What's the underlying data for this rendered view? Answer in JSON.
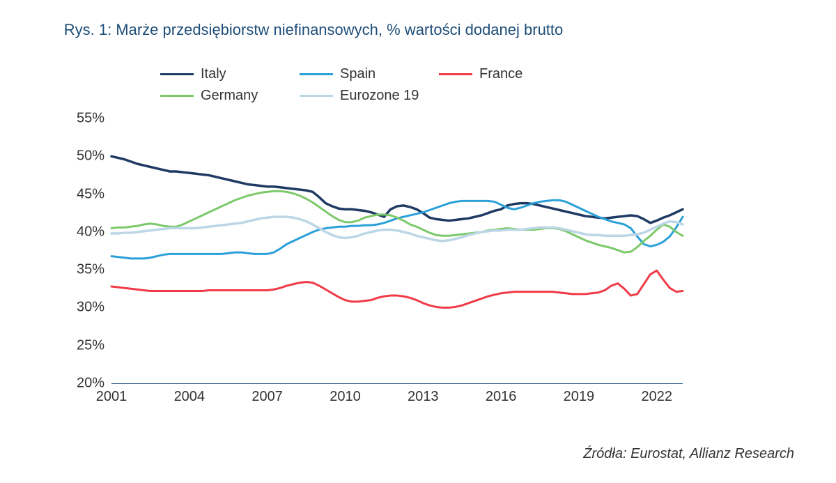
{
  "chart": {
    "type": "line",
    "title": "Rys. 1: Marże przedsiębiorstw niefinansowych, % wartości dodanej brutto",
    "title_color": "#1f4e79",
    "title_fontsize": 22,
    "label_fontsize": 20,
    "label_color": "#333333",
    "background_color": "#ffffff",
    "x": {
      "min": 2001,
      "max": 2023,
      "ticks": [
        2001,
        2004,
        2007,
        2010,
        2013,
        2016,
        2019,
        2022
      ]
    },
    "y": {
      "min": 20,
      "max": 55,
      "ticks": [
        20,
        25,
        30,
        35,
        40,
        45,
        50,
        55
      ],
      "suffix": "%"
    },
    "x_axis_line_color": "#1f4e79",
    "x_values": [
      2001.0,
      2001.25,
      2001.5,
      2001.75,
      2002.0,
      2002.25,
      2002.5,
      2002.75,
      2003.0,
      2003.25,
      2003.5,
      2003.75,
      2004.0,
      2004.25,
      2004.5,
      2004.75,
      2005.0,
      2005.25,
      2005.5,
      2005.75,
      2006.0,
      2006.25,
      2006.5,
      2006.75,
      2007.0,
      2007.25,
      2007.5,
      2007.75,
      2008.0,
      2008.25,
      2008.5,
      2008.75,
      2009.0,
      2009.25,
      2009.5,
      2009.75,
      2010.0,
      2010.25,
      2010.5,
      2010.75,
      2011.0,
      2011.25,
      2011.5,
      2011.75,
      2012.0,
      2012.25,
      2012.5,
      2012.75,
      2013.0,
      2013.25,
      2013.5,
      2013.75,
      2014.0,
      2014.25,
      2014.5,
      2014.75,
      2015.0,
      2015.25,
      2015.5,
      2015.75,
      2016.0,
      2016.25,
      2016.5,
      2016.75,
      2017.0,
      2017.25,
      2017.5,
      2017.75,
      2018.0,
      2018.25,
      2018.5,
      2018.75,
      2019.0,
      2019.25,
      2019.5,
      2019.75,
      2020.0,
      2020.25,
      2020.5,
      2020.75,
      2021.0,
      2021.25,
      2021.5,
      2021.75,
      2022.0,
      2022.25,
      2022.5,
      2022.75,
      2023.0
    ],
    "series": [
      {
        "name": "Italy",
        "label": "Italy",
        "color": "#1f3a63",
        "width": 3.5,
        "values": [
          50.0,
          49.8,
          49.6,
          49.3,
          49.0,
          48.8,
          48.6,
          48.4,
          48.2,
          48.0,
          48.0,
          47.9,
          47.8,
          47.7,
          47.6,
          47.5,
          47.3,
          47.1,
          46.9,
          46.7,
          46.5,
          46.3,
          46.2,
          46.1,
          46.0,
          46.0,
          45.9,
          45.8,
          45.7,
          45.6,
          45.5,
          45.3,
          44.6,
          43.8,
          43.4,
          43.1,
          43.0,
          43.0,
          42.9,
          42.8,
          42.6,
          42.3,
          42.0,
          43.0,
          43.4,
          43.5,
          43.3,
          43.0,
          42.5,
          41.9,
          41.7,
          41.6,
          41.5,
          41.6,
          41.7,
          41.8,
          42.0,
          42.2,
          42.5,
          42.8,
          43.0,
          43.5,
          43.7,
          43.8,
          43.8,
          43.7,
          43.5,
          43.3,
          43.1,
          42.9,
          42.7,
          42.5,
          42.3,
          42.1,
          42.0,
          41.9,
          41.8,
          41.9,
          42.0,
          42.1,
          42.2,
          42.1,
          41.7,
          41.2,
          41.5,
          41.9,
          42.2,
          42.6,
          43.0
        ]
      },
      {
        "name": "Spain",
        "label": "Spain",
        "color": "#2aa0d8",
        "width": 3,
        "values": [
          36.8,
          36.7,
          36.6,
          36.5,
          36.5,
          36.5,
          36.6,
          36.8,
          37.0,
          37.1,
          37.1,
          37.1,
          37.1,
          37.1,
          37.1,
          37.1,
          37.1,
          37.1,
          37.2,
          37.3,
          37.3,
          37.2,
          37.1,
          37.1,
          37.1,
          37.3,
          37.8,
          38.4,
          38.8,
          39.2,
          39.6,
          40.0,
          40.3,
          40.5,
          40.6,
          40.7,
          40.7,
          40.8,
          40.8,
          40.9,
          40.9,
          41.0,
          41.2,
          41.5,
          41.8,
          42.0,
          42.2,
          42.4,
          42.6,
          42.9,
          43.2,
          43.5,
          43.8,
          44.0,
          44.1,
          44.1,
          44.1,
          44.1,
          44.1,
          44.0,
          43.6,
          43.2,
          43.0,
          43.2,
          43.5,
          43.8,
          44.0,
          44.1,
          44.2,
          44.2,
          44.0,
          43.6,
          43.2,
          42.8,
          42.4,
          42.0,
          41.7,
          41.4,
          41.2,
          41.0,
          40.5,
          39.4,
          38.4,
          38.1,
          38.3,
          38.7,
          39.4,
          40.6,
          42.0
        ]
      },
      {
        "name": "France",
        "label": "France",
        "color": "#ef3b47",
        "width": 3,
        "values": [
          32.8,
          32.7,
          32.6,
          32.5,
          32.4,
          32.3,
          32.2,
          32.2,
          32.2,
          32.2,
          32.2,
          32.2,
          32.2,
          32.2,
          32.2,
          32.3,
          32.3,
          32.3,
          32.3,
          32.3,
          32.3,
          32.3,
          32.3,
          32.3,
          32.3,
          32.4,
          32.6,
          32.9,
          33.1,
          33.3,
          33.4,
          33.3,
          32.9,
          32.4,
          31.9,
          31.4,
          31.0,
          30.8,
          30.8,
          30.9,
          31.0,
          31.3,
          31.5,
          31.6,
          31.6,
          31.5,
          31.3,
          31.0,
          30.6,
          30.3,
          30.1,
          30.0,
          30.0,
          30.1,
          30.3,
          30.6,
          30.9,
          31.2,
          31.5,
          31.7,
          31.9,
          32.0,
          32.1,
          32.1,
          32.1,
          32.1,
          32.1,
          32.1,
          32.1,
          32.0,
          31.9,
          31.8,
          31.8,
          31.8,
          31.9,
          32.0,
          32.3,
          32.9,
          33.2,
          32.5,
          31.6,
          31.8,
          33.1,
          34.4,
          34.9,
          33.7,
          32.6,
          32.1,
          32.2
        ]
      },
      {
        "name": "Germany",
        "label": "Germany",
        "color": "#7cc96b",
        "width": 3,
        "values": [
          40.5,
          40.6,
          40.6,
          40.7,
          40.8,
          41.0,
          41.1,
          41.0,
          40.8,
          40.7,
          40.7,
          41.0,
          41.4,
          41.8,
          42.2,
          42.6,
          43.0,
          43.4,
          43.8,
          44.2,
          44.5,
          44.8,
          45.0,
          45.2,
          45.3,
          45.4,
          45.4,
          45.3,
          45.1,
          44.8,
          44.4,
          43.9,
          43.3,
          42.7,
          42.1,
          41.6,
          41.3,
          41.3,
          41.5,
          41.9,
          42.1,
          42.3,
          42.3,
          42.2,
          41.9,
          41.5,
          41.0,
          40.7,
          40.3,
          39.9,
          39.6,
          39.5,
          39.5,
          39.6,
          39.7,
          39.8,
          39.9,
          40.0,
          40.2,
          40.3,
          40.4,
          40.5,
          40.4,
          40.3,
          40.3,
          40.3,
          40.4,
          40.5,
          40.5,
          40.4,
          40.1,
          39.7,
          39.3,
          38.9,
          38.6,
          38.3,
          38.1,
          37.9,
          37.6,
          37.3,
          37.4,
          38.0,
          38.8,
          39.5,
          40.3,
          41.0,
          40.7,
          40.0,
          39.5
        ]
      },
      {
        "name": "Eurozone 19",
        "label": "Eurozone 19",
        "color": "#bcd6e6",
        "width": 3.5,
        "values": [
          39.8,
          39.8,
          39.9,
          39.9,
          40.0,
          40.1,
          40.2,
          40.3,
          40.4,
          40.5,
          40.5,
          40.5,
          40.5,
          40.5,
          40.6,
          40.7,
          40.8,
          40.9,
          41.0,
          41.1,
          41.2,
          41.4,
          41.6,
          41.8,
          41.9,
          42.0,
          42.0,
          42.0,
          41.9,
          41.7,
          41.4,
          41.0,
          40.5,
          40.0,
          39.6,
          39.3,
          39.2,
          39.3,
          39.5,
          39.8,
          40.0,
          40.2,
          40.3,
          40.3,
          40.2,
          40.0,
          39.8,
          39.5,
          39.3,
          39.1,
          38.9,
          38.8,
          38.9,
          39.1,
          39.3,
          39.6,
          39.8,
          40.0,
          40.1,
          40.2,
          40.2,
          40.3,
          40.3,
          40.3,
          40.4,
          40.5,
          40.6,
          40.6,
          40.6,
          40.5,
          40.3,
          40.1,
          39.9,
          39.7,
          39.6,
          39.6,
          39.5,
          39.5,
          39.5,
          39.5,
          39.6,
          39.7,
          39.9,
          40.3,
          40.7,
          41.1,
          41.4,
          41.3,
          41.0
        ]
      }
    ],
    "source": "Źródła: Eurostat, Allianz Research"
  }
}
